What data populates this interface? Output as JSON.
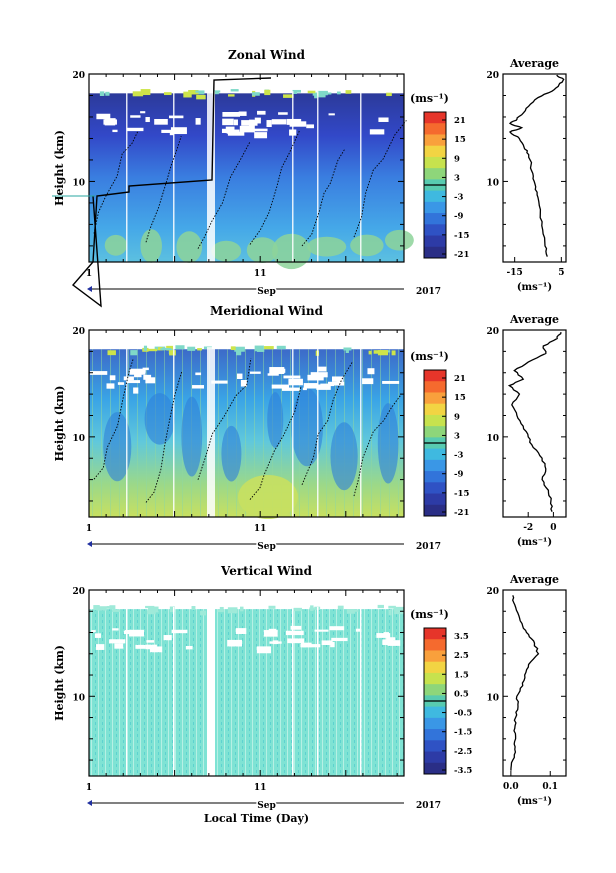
{
  "chart_data": [
    {
      "type": "heatmap",
      "title": "Zonal Wind",
      "ylabel": "Height (km)",
      "y_ticks": [
        "20",
        "10"
      ],
      "ylim": [
        2.5,
        20
      ],
      "x_ticks": [
        "1",
        "11"
      ],
      "x_month": "Sep",
      "x_year": "2017",
      "colorbar_unit": "(ms⁻¹)",
      "colorbar_ticks": [
        "21",
        "15",
        "9",
        "3",
        "-3",
        "-9",
        "-15",
        "-21"
      ],
      "average_title": "Average",
      "average_ticks_y": [
        "20",
        "10"
      ],
      "average_ticks_x": [
        "-15",
        "5"
      ],
      "average_xlabel": "(ms⁻¹)",
      "average_xlim": [
        -20,
        7
      ],
      "average_profile": [
        {
          "h": 3.0,
          "v": -1
        },
        {
          "h": 4.0,
          "v": -2
        },
        {
          "h": 5.5,
          "v": -3
        },
        {
          "h": 7.0,
          "v": -4
        },
        {
          "h": 8.5,
          "v": -5
        },
        {
          "h": 9.5,
          "v": -6
        },
        {
          "h": 10.5,
          "v": -7
        },
        {
          "h": 11.5,
          "v": -8
        },
        {
          "h": 12.5,
          "v": -9
        },
        {
          "h": 13.2,
          "v": -11
        },
        {
          "h": 14.0,
          "v": -13
        },
        {
          "h": 14.6,
          "v": -17
        },
        {
          "h": 15.0,
          "v": -12
        },
        {
          "h": 15.4,
          "v": -17
        },
        {
          "h": 15.8,
          "v": -14
        },
        {
          "h": 16.2,
          "v": -12
        },
        {
          "h": 17.0,
          "v": -9
        },
        {
          "h": 17.8,
          "v": -5
        },
        {
          "h": 18.4,
          "v": 1
        },
        {
          "h": 19.0,
          "v": 4
        },
        {
          "h": 19.5,
          "v": 6
        },
        {
          "h": 19.9,
          "v": 3
        }
      ]
    },
    {
      "type": "heatmap",
      "title": "Meridional Wind",
      "ylabel": "Height (km)",
      "y_ticks": [
        "20",
        "10"
      ],
      "ylim": [
        2.5,
        20
      ],
      "x_ticks": [
        "1",
        "11"
      ],
      "x_month": "Sep",
      "x_year": "2017",
      "colorbar_unit": "(ms⁻¹)",
      "colorbar_ticks": [
        "21",
        "15",
        "9",
        "3",
        "-3",
        "-9",
        "-15",
        "-21"
      ],
      "average_title": "Average",
      "average_ticks_y": [
        "20",
        "10"
      ],
      "average_ticks_x": [
        "-2",
        "0"
      ],
      "average_xlabel": "(ms⁻¹)",
      "average_xlim": [
        -4,
        1
      ],
      "average_profile": [
        {
          "h": 3.0,
          "v": -0.1
        },
        {
          "h": 4.0,
          "v": -0.2
        },
        {
          "h": 5.0,
          "v": -0.4
        },
        {
          "h": 6.0,
          "v": -0.9
        },
        {
          "h": 7.0,
          "v": -0.6
        },
        {
          "h": 8.0,
          "v": -0.9
        },
        {
          "h": 9.0,
          "v": -1.6
        },
        {
          "h": 10.0,
          "v": -2.0
        },
        {
          "h": 11.0,
          "v": -2.4
        },
        {
          "h": 12.0,
          "v": -2.9
        },
        {
          "h": 13.0,
          "v": -3.3
        },
        {
          "h": 14.0,
          "v": -2.7
        },
        {
          "h": 14.8,
          "v": -3.5
        },
        {
          "h": 15.4,
          "v": -2.4
        },
        {
          "h": 16.2,
          "v": -3.1
        },
        {
          "h": 17.0,
          "v": -2.0
        },
        {
          "h": 17.8,
          "v": -0.6
        },
        {
          "h": 18.5,
          "v": -0.8
        },
        {
          "h": 19.2,
          "v": 0.3
        },
        {
          "h": 19.8,
          "v": 0.6
        }
      ]
    },
    {
      "type": "heatmap",
      "title": "Vertical Wind",
      "ylabel": "Height (km)",
      "y_ticks": [
        "20",
        "10"
      ],
      "ylim": [
        2.5,
        20
      ],
      "x_ticks": [
        "1",
        "11"
      ],
      "x_month": "Sep",
      "x_year": "2017",
      "xlabel": "Local Time (Day)",
      "colorbar_unit": "(ms⁻¹)",
      "colorbar_ticks": [
        "3.5",
        "2.5",
        "1.5",
        "0.5",
        "-0.5",
        "-1.5",
        "-2.5",
        "-3.5"
      ],
      "average_title": "Average",
      "average_ticks_y": [
        "20",
        "10"
      ],
      "average_ticks_x": [
        "0.0",
        "0.1"
      ],
      "average_xlabel": "(ms⁻¹)",
      "average_xlim": [
        -0.02,
        0.14
      ],
      "average_profile": [
        {
          "h": 3.0,
          "v": 0.0
        },
        {
          "h": 4.0,
          "v": 0.005
        },
        {
          "h": 5.0,
          "v": 0.01
        },
        {
          "h": 6.0,
          "v": 0.012
        },
        {
          "h": 7.0,
          "v": 0.01
        },
        {
          "h": 8.0,
          "v": 0.012
        },
        {
          "h": 9.0,
          "v": 0.018
        },
        {
          "h": 10.0,
          "v": 0.015
        },
        {
          "h": 11.0,
          "v": 0.03
        },
        {
          "h": 12.0,
          "v": 0.035
        },
        {
          "h": 13.0,
          "v": 0.045
        },
        {
          "h": 14.0,
          "v": 0.07
        },
        {
          "h": 15.0,
          "v": 0.06
        },
        {
          "h": 15.8,
          "v": 0.045
        },
        {
          "h": 16.6,
          "v": 0.03
        },
        {
          "h": 17.6,
          "v": 0.02
        },
        {
          "h": 18.6,
          "v": 0.01
        },
        {
          "h": 19.5,
          "v": 0.005
        }
      ]
    }
  ]
}
